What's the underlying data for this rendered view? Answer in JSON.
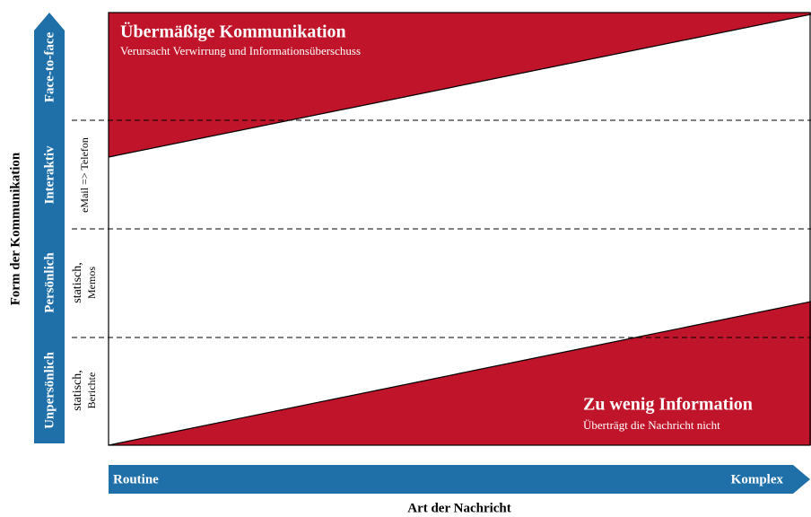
{
  "y_axis": {
    "label": "Form der Kommunikation",
    "levels": [
      "Unpersönlich",
      "Persönlich",
      "Interaktiv",
      "Face-to-face"
    ]
  },
  "media": {
    "unpersoenlich": [
      "statisch,",
      "Berichte"
    ],
    "persoenlich": [
      "statisch,",
      "Memos"
    ],
    "interaktiv": "eMail => Telefon"
  },
  "x_axis": {
    "label": "Art der Nachricht",
    "start": "Routine",
    "end": "Komplex"
  },
  "top_region": {
    "title": "Übermäßige Kommunikation",
    "subtitle": "Verursacht Verwirrung und Informationsüberschuss"
  },
  "bottom_region": {
    "title": "Zu wenig Information",
    "subtitle": "Überträgt die Nachricht nicht"
  }
}
